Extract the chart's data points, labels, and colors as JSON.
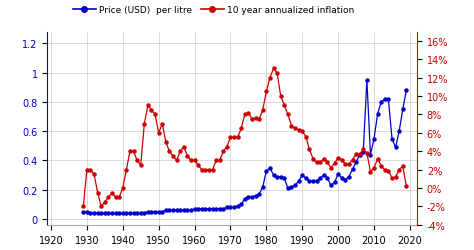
{
  "price_years": [
    1929,
    1930,
    1931,
    1932,
    1933,
    1934,
    1935,
    1936,
    1937,
    1938,
    1939,
    1940,
    1941,
    1942,
    1943,
    1944,
    1945,
    1946,
    1947,
    1948,
    1949,
    1950,
    1951,
    1952,
    1953,
    1954,
    1955,
    1956,
    1957,
    1958,
    1959,
    1960,
    1961,
    1962,
    1963,
    1964,
    1965,
    1966,
    1967,
    1968,
    1969,
    1970,
    1971,
    1972,
    1973,
    1974,
    1975,
    1976,
    1977,
    1978,
    1979,
    1980,
    1981,
    1982,
    1983,
    1984,
    1985,
    1986,
    1987,
    1988,
    1989,
    1990,
    1991,
    1992,
    1993,
    1994,
    1995,
    1996,
    1997,
    1998,
    1999,
    2000,
    2001,
    2002,
    2003,
    2004,
    2005,
    2006,
    2007,
    2008,
    2009,
    2010,
    2011,
    2012,
    2013,
    2014,
    2015,
    2016,
    2017,
    2018,
    2019
  ],
  "price_values": [
    0.05,
    0.05,
    0.04,
    0.04,
    0.04,
    0.04,
    0.04,
    0.04,
    0.04,
    0.04,
    0.04,
    0.04,
    0.04,
    0.04,
    0.04,
    0.04,
    0.04,
    0.04,
    0.05,
    0.05,
    0.05,
    0.05,
    0.05,
    0.06,
    0.06,
    0.06,
    0.06,
    0.06,
    0.06,
    0.06,
    0.06,
    0.07,
    0.07,
    0.07,
    0.07,
    0.07,
    0.07,
    0.07,
    0.07,
    0.07,
    0.08,
    0.08,
    0.08,
    0.09,
    0.1,
    0.14,
    0.15,
    0.15,
    0.16,
    0.17,
    0.22,
    0.33,
    0.35,
    0.3,
    0.29,
    0.29,
    0.28,
    0.21,
    0.22,
    0.23,
    0.26,
    0.3,
    0.28,
    0.26,
    0.26,
    0.26,
    0.28,
    0.3,
    0.28,
    0.23,
    0.25,
    0.31,
    0.28,
    0.27,
    0.29,
    0.34,
    0.39,
    0.44,
    0.46,
    0.95,
    0.44,
    0.55,
    0.72,
    0.8,
    0.82,
    0.82,
    0.55,
    0.49,
    0.6,
    0.75,
    0.88
  ],
  "inflation_years": [
    1929,
    1930,
    1931,
    1932,
    1933,
    1934,
    1935,
    1936,
    1937,
    1938,
    1939,
    1940,
    1941,
    1942,
    1943,
    1944,
    1945,
    1946,
    1947,
    1948,
    1949,
    1950,
    1951,
    1952,
    1953,
    1954,
    1955,
    1956,
    1957,
    1958,
    1959,
    1960,
    1961,
    1962,
    1963,
    1964,
    1965,
    1966,
    1967,
    1968,
    1969,
    1970,
    1971,
    1972,
    1973,
    1974,
    1975,
    1976,
    1977,
    1978,
    1979,
    1980,
    1981,
    1982,
    1983,
    1984,
    1985,
    1986,
    1987,
    1988,
    1989,
    1990,
    1991,
    1992,
    1993,
    1994,
    1995,
    1996,
    1997,
    1998,
    1999,
    2000,
    2001,
    2002,
    2003,
    2004,
    2005,
    2006,
    2007,
    2008,
    2009,
    2010,
    2011,
    2012,
    2013,
    2014,
    2015,
    2016,
    2017,
    2018,
    2019
  ],
  "inflation_values": [
    -0.02,
    0.02,
    0.02,
    0.015,
    -0.005,
    -0.02,
    -0.015,
    -0.01,
    -0.005,
    -0.01,
    -0.01,
    0.0,
    0.02,
    0.04,
    0.04,
    0.03,
    0.025,
    0.07,
    0.09,
    0.085,
    0.08,
    0.06,
    0.07,
    0.05,
    0.04,
    0.035,
    0.03,
    0.04,
    0.045,
    0.035,
    0.03,
    0.03,
    0.025,
    0.02,
    0.02,
    0.02,
    0.02,
    0.03,
    0.03,
    0.04,
    0.045,
    0.055,
    0.055,
    0.055,
    0.065,
    0.08,
    0.082,
    0.075,
    0.076,
    0.075,
    0.085,
    0.105,
    0.12,
    0.13,
    0.125,
    0.1,
    0.09,
    0.08,
    0.068,
    0.065,
    0.063,
    0.062,
    0.056,
    0.042,
    0.032,
    0.028,
    0.028,
    0.032,
    0.028,
    0.022,
    0.027,
    0.033,
    0.031,
    0.026,
    0.026,
    0.031,
    0.037,
    0.037,
    0.042,
    0.038,
    0.018,
    0.022,
    0.032,
    0.024,
    0.02,
    0.019,
    0.011,
    0.012,
    0.02,
    0.024,
    0.002
  ],
  "price_color": "#0000cc",
  "inflation_color": "#cc0000",
  "background_color": "#ffffff",
  "grid_color": "#cccccc",
  "legend_label_price": "Price (USD)  per litre",
  "legend_label_inflation": "10 year annualized inflation",
  "ylim_left": [
    -0.04,
    1.28
  ],
  "ylim_right": [
    -0.04,
    0.17
  ],
  "xlim": [
    1919,
    2022
  ],
  "xticks": [
    1920,
    1930,
    1940,
    1950,
    1960,
    1970,
    1980,
    1990,
    2000,
    2010,
    2020
  ],
  "yticks_left": [
    0,
    0.2,
    0.4,
    0.6,
    0.8,
    1.0,
    1.2
  ],
  "ytick_labels_left": [
    "0",
    "0.2",
    "0.4",
    "0.6",
    "0.8",
    "1",
    "1.2"
  ],
  "yticks_right": [
    -0.04,
    -0.02,
    0.0,
    0.02,
    0.04,
    0.06,
    0.08,
    0.1,
    0.12,
    0.14,
    0.16
  ],
  "ytick_labels_right": [
    "-4%",
    "-2%",
    "0%",
    "2%",
    "4%",
    "6%",
    "8%",
    "10%",
    "12%",
    "14%",
    "16%"
  ]
}
